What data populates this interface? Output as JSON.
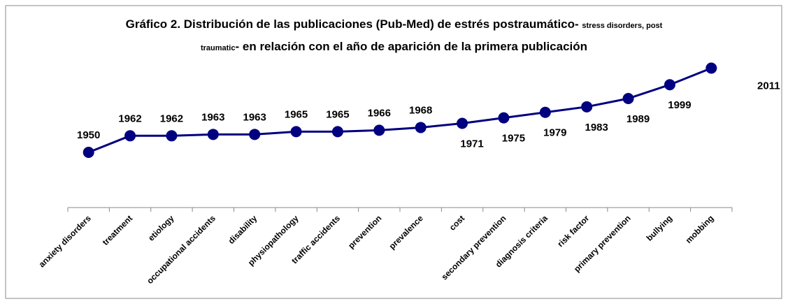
{
  "chart_data": {
    "type": "line",
    "title": [
      "Gráfico 2. Distribución de las publicaciones (Pub-Med) de estrés postraumático-",
      "stress disorders, post traumatic",
      "- en relación con el año de aparición de  la primera publicación"
    ],
    "categories": [
      "anxiety disorders",
      "treatment",
      "etiology",
      "occupational accidents",
      "disability",
      "physiopathology",
      "traffic accidents",
      "prevention",
      "prevalence",
      "cost",
      "secondary prevention",
      "diagnosis criteria",
      "risk factor",
      "primary prevention",
      "bullying",
      "mobbing"
    ],
    "values": [
      1950,
      1962,
      1962,
      1963,
      1963,
      1965,
      1965,
      1966,
      1968,
      1971,
      1975,
      1979,
      1983,
      1989,
      1999,
      2011
    ],
    "color": "#000080",
    "ylim": [
      1910,
      2030
    ]
  }
}
